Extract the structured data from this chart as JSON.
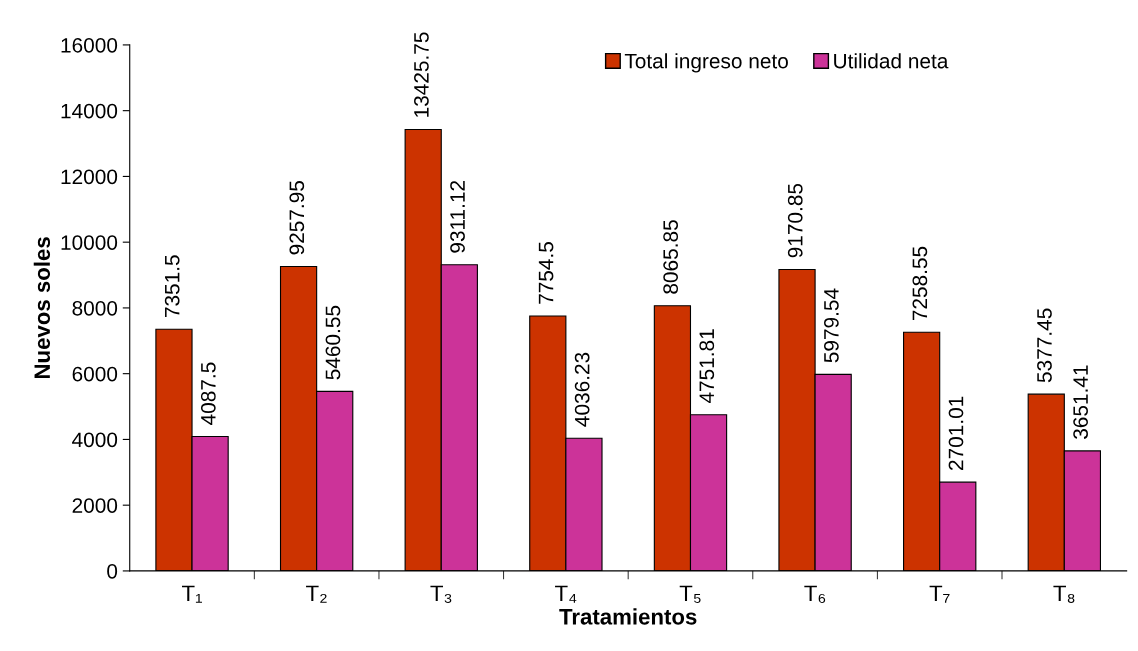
{
  "chart_data": {
    "type": "bar",
    "xlabel": "Tratamientos",
    "ylabel": "Nuevos soles",
    "categories": [
      "T₁",
      "T₂",
      "T₃",
      "T₄",
      "T₅",
      "T₆",
      "T₇",
      "T₈"
    ],
    "series": [
      {
        "name": "Total ingreso neto",
        "color": "#cc3300",
        "values": [
          7351.5,
          9257.95,
          13425.75,
          7754.5,
          8065.85,
          9170.85,
          7258.55,
          5377.45
        ]
      },
      {
        "name": "Utilidad neta",
        "color": "#cc3399",
        "values": [
          4087.5,
          5460.55,
          9311.12,
          4036.23,
          4751.81,
          5979.54,
          2701.01,
          3651.41
        ]
      }
    ],
    "ylim": [
      0,
      16000
    ],
    "yticks": [
      0,
      2000,
      4000,
      6000,
      8000,
      10000,
      12000,
      14000,
      16000
    ],
    "data_labels": true,
    "legend": "top right",
    "grid": false
  }
}
